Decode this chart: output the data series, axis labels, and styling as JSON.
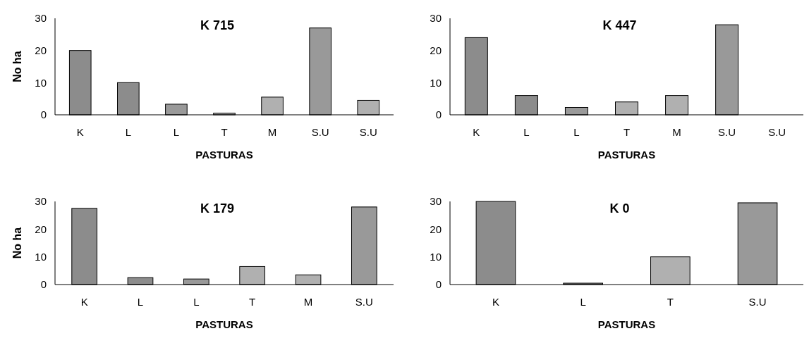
{
  "chart_data": [
    {
      "type": "bar",
      "title": "K 715",
      "xlabel": "PASTURAS",
      "ylabel": "No ha",
      "categories": [
        "K",
        "L",
        "L",
        "T",
        "M",
        "S.U",
        "S.U"
      ],
      "values": [
        20,
        10,
        3.3,
        0.5,
        5.5,
        27,
        4.5
      ],
      "colors": [
        "#8c8c8c",
        "#8c8c8c",
        "#999999",
        "#b0b0b0",
        "#b0b0b0",
        "#999999",
        "#b0b0b0"
      ],
      "ylim": [
        0,
        30
      ],
      "yticks": [
        0,
        10,
        20,
        30
      ]
    },
    {
      "type": "bar",
      "title": "K 447",
      "xlabel": "PASTURAS",
      "categories": [
        "K",
        "L",
        "L",
        "T",
        "M",
        "S.U",
        "S.U"
      ],
      "values": [
        24,
        6,
        2.3,
        4,
        6,
        28,
        0
      ],
      "colors": [
        "#8c8c8c",
        "#8c8c8c",
        "#999999",
        "#b0b0b0",
        "#b0b0b0",
        "#999999",
        "#b0b0b0"
      ],
      "ylim": [
        0,
        30
      ],
      "yticks": [
        0,
        10,
        20,
        30
      ]
    },
    {
      "type": "bar",
      "title": "K 179",
      "xlabel": "PASTURAS",
      "ylabel": "No ha",
      "categories": [
        "K",
        "L",
        "L",
        "T",
        "M",
        "S.U"
      ],
      "values": [
        27.5,
        2.5,
        2,
        6.5,
        3.5,
        28
      ],
      "colors": [
        "#8c8c8c",
        "#8c8c8c",
        "#999999",
        "#b0b0b0",
        "#b0b0b0",
        "#999999"
      ],
      "ylim": [
        0,
        30
      ],
      "yticks": [
        0,
        10,
        20,
        30
      ]
    },
    {
      "type": "bar",
      "title": "K  0",
      "xlabel": "PASTURAS",
      "categories": [
        "K",
        "L",
        "T",
        "S.U"
      ],
      "values": [
        30,
        0.5,
        10,
        29.5
      ],
      "colors": [
        "#8c8c8c",
        "#8c8c8c",
        "#b0b0b0",
        "#999999"
      ],
      "ylim": [
        0,
        30
      ],
      "yticks": [
        0,
        10,
        20,
        30
      ]
    }
  ]
}
